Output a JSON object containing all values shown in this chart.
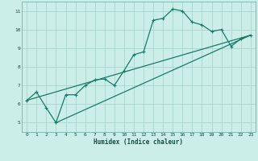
{
  "title": "",
  "xlabel": "Humidex (Indice chaleur)",
  "ylabel": "",
  "bg_color": "#cceee8",
  "grid_color": "#aad4ce",
  "line_color": "#1a7a6a",
  "xlim": [
    -0.5,
    23.5
  ],
  "ylim": [
    4.5,
    11.5
  ],
  "xticks": [
    0,
    1,
    2,
    3,
    4,
    5,
    6,
    7,
    8,
    9,
    10,
    11,
    12,
    13,
    14,
    15,
    16,
    17,
    18,
    19,
    20,
    21,
    22,
    23
  ],
  "yticks": [
    5,
    6,
    7,
    8,
    9,
    10,
    11
  ],
  "line1_x": [
    0,
    1,
    2,
    3,
    4,
    5,
    6,
    7,
    8,
    9,
    10,
    11,
    12,
    13,
    14,
    15,
    16,
    17,
    18,
    19,
    20,
    21,
    22,
    23
  ],
  "line1_y": [
    6.2,
    6.65,
    5.8,
    5.0,
    6.5,
    6.5,
    7.0,
    7.3,
    7.35,
    7.0,
    7.8,
    8.65,
    8.8,
    10.5,
    10.6,
    11.1,
    11.0,
    10.4,
    10.25,
    9.9,
    10.0,
    9.1,
    9.5,
    9.7
  ],
  "line2_x": [
    0,
    23
  ],
  "line2_y": [
    6.2,
    9.7
  ],
  "line3_x": [
    3,
    23
  ],
  "line3_y": [
    5.0,
    9.7
  ]
}
